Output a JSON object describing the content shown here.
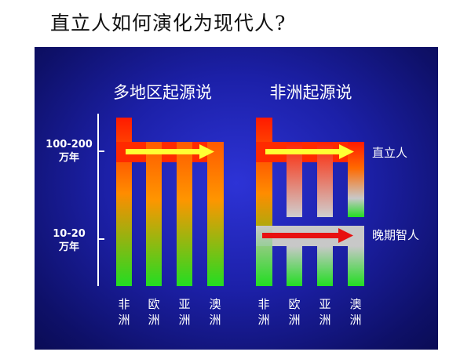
{
  "title": "直立人如何演化为现代人?",
  "diagram": {
    "left_heading": "多地区起源说",
    "right_heading": "非洲起源说",
    "y_labels": [
      {
        "line1": "100-200",
        "line2": "万年"
      },
      {
        "line1": "10-20",
        "line2": "万年"
      }
    ],
    "right_labels": [
      "直立人",
      "晚期智人"
    ],
    "left_columns": [
      "非洲",
      "欧洲",
      "亚洲",
      "澳洲"
    ],
    "right_columns": [
      "非洲",
      "欧洲",
      "亚洲",
      "澳洲"
    ],
    "colors": {
      "red": "#ff1a00",
      "orange": "#ff8c00",
      "green": "#22dd22",
      "gray": "#c8c8c8",
      "arrow_yellow": "#ffff33",
      "arrow_red": "#e81010"
    }
  }
}
